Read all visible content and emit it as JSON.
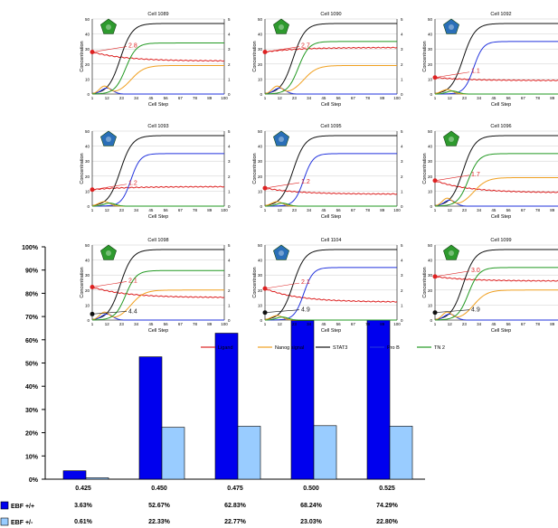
{
  "chart_data": [
    {
      "type": "bar",
      "categories": [
        "0.425",
        "0.450",
        "0.475",
        "0.500",
        "0.525"
      ],
      "series": [
        {
          "name": "EBF +/+",
          "values": [
            3.63,
            52.67,
            62.83,
            68.24,
            74.29
          ],
          "labels": [
            "3.63%",
            "52.67%",
            "62.83%",
            "68.24%",
            "74.29%"
          ],
          "color": "#0000ee"
        },
        {
          "name": "EBF +/-",
          "values": [
            0.61,
            22.33,
            22.77,
            23.03,
            22.8
          ],
          "labels": [
            "0.61%",
            "22.33%",
            "22.77%",
            "23.03%",
            "22.80%"
          ],
          "color": "#99ccff"
        }
      ],
      "ylim": [
        0,
        100
      ],
      "yticks": [
        "0%",
        "10%",
        "20%",
        "30%",
        "40%",
        "50%",
        "60%",
        "70%",
        "80%",
        "90%",
        "100%"
      ],
      "grid": false,
      "legend": "table-below"
    },
    {
      "type": "line",
      "panels": [
        {
          "title": "Cell 1089",
          "marker": "2.8",
          "marker_value": 28,
          "ligand_end": 22,
          "stat_end": 47,
          "green_end": 34,
          "orange_end": 19,
          "blue": "transient",
          "cell_color": "green"
        },
        {
          "title": "Cell 1090",
          "marker": "2.7",
          "marker_value": 28,
          "ligand_end": 31,
          "stat_end": 47,
          "green_end": 35,
          "orange_end": 19,
          "blue": "transient",
          "cell_color": "green"
        },
        {
          "title": "Cell 1092",
          "marker": "1.1",
          "marker_value": 11,
          "ligand_end": 9,
          "stat_end": 47,
          "green_end": 0,
          "orange_end": 0,
          "blue": "rise",
          "cell_color": "blue"
        },
        {
          "title": "Cell 1093",
          "marker": "1.2",
          "marker_value": 11,
          "ligand_end": 13,
          "stat_end": 47,
          "green_end": 0,
          "orange_end": 0,
          "blue": "rise",
          "cell_color": "blue"
        },
        {
          "title": "Cell 1095",
          "marker": "1.2",
          "marker_value": 12,
          "ligand_end": 8,
          "stat_end": 47,
          "green_end": 0,
          "orange_end": 0,
          "blue": "rise",
          "cell_color": "blue"
        },
        {
          "title": "Cell 1096",
          "marker": "1.7",
          "marker_value": 17,
          "ligand_end": 9,
          "stat_end": 47,
          "green_end": 35,
          "orange_end": 19,
          "blue": "transient",
          "cell_color": "green"
        },
        {
          "title": "Cell 1098",
          "marker": "2.1",
          "marker_value": 22,
          "marker2": "4.4",
          "marker2_value": 4,
          "ligand_end": 15,
          "stat_end": 47,
          "green_end": 33,
          "orange_end": 20,
          "blue": "transient",
          "cell_color": "green"
        },
        {
          "title": "Cell 1104",
          "marker": "2.1",
          "marker_value": 21,
          "marker2": "4.9",
          "marker2_value": 5,
          "ligand_end": 12,
          "stat_end": 47,
          "green_end": 0,
          "orange_end": 0,
          "blue": "rise",
          "cell_color": "blue"
        },
        {
          "title": "Cell 1099",
          "marker": "3.0",
          "marker_value": 29,
          "marker2": "4.9",
          "marker2_value": 5,
          "ligand_end": 26,
          "stat_end": 47,
          "green_end": 35,
          "orange_end": 20,
          "blue": "transient",
          "cell_color": "green"
        }
      ],
      "xlabel": "Cell Step",
      "ylabel": "Concentration",
      "xticks": [
        "1",
        "12",
        "23",
        "34",
        "45",
        "56",
        "67",
        "78",
        "89",
        "100"
      ],
      "yticks": [
        "0",
        "10",
        "20",
        "30",
        "40",
        "50"
      ],
      "y2ticks": [
        "0",
        "1",
        "2",
        "3",
        "4",
        "5"
      ],
      "ylim": [
        0,
        50
      ],
      "xlim": [
        1,
        100
      ],
      "legend": [
        {
          "name": "Ligand",
          "color": "#dd2222"
        },
        {
          "name": "Nanog signal",
          "color": "#f0a020"
        },
        {
          "name": "STAT3",
          "color": "#111111"
        },
        {
          "name": "Pro B",
          "color": "#2233dd"
        },
        {
          "name": "TN 2",
          "color": "#229922"
        }
      ]
    }
  ]
}
